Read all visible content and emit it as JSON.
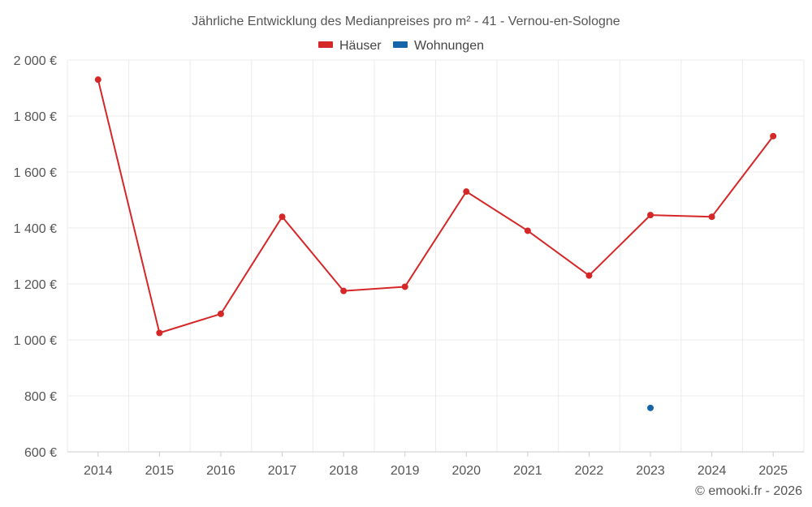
{
  "chart_data": {
    "type": "line",
    "title": "Jährliche Entwicklung des Medianpreises pro m² - 41 - Vernou-en-Sologne",
    "categories": [
      "2014",
      "2015",
      "2016",
      "2017",
      "2018",
      "2019",
      "2020",
      "2021",
      "2022",
      "2023",
      "2024",
      "2025"
    ],
    "series": [
      {
        "name": "Häuser",
        "color": "#d62728",
        "values": [
          1930,
          1025,
          1093,
          1440,
          1175,
          1190,
          1530,
          1390,
          1230,
          1446,
          1440,
          1728
        ]
      },
      {
        "name": "Wohnungen",
        "color": "#1565a8",
        "values": [
          null,
          null,
          null,
          null,
          null,
          null,
          null,
          null,
          null,
          757,
          null,
          null
        ]
      }
    ],
    "ylim": [
      600,
      2000
    ],
    "yticks": [
      600,
      800,
      1000,
      1200,
      1400,
      1600,
      1800,
      2000
    ],
    "ytick_labels": [
      "600 €",
      "800 €",
      "1 000 €",
      "1 200 €",
      "1 400 €",
      "1 600 €",
      "1 800 €",
      "2 000 €"
    ],
    "xlabel": "",
    "ylabel": "",
    "grid": true,
    "legend_position": "top-center"
  },
  "credit": "© emooki.fr - 2026"
}
